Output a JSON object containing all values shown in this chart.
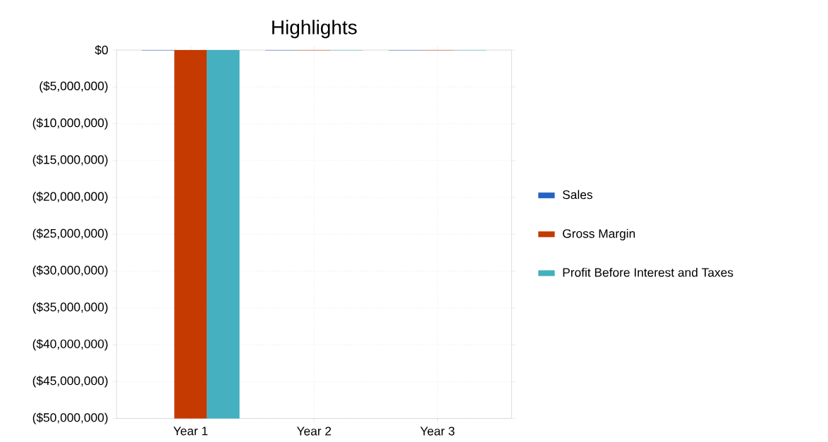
{
  "chart_data": {
    "type": "bar",
    "title": "Highlights",
    "categories": [
      "Year 1",
      "Year 2",
      "Year 3"
    ],
    "series": [
      {
        "name": "Sales",
        "color": "#2563c0",
        "values": [
          0,
          0,
          0
        ]
      },
      {
        "name": "Gross Margin",
        "color": "#c43a00",
        "values": [
          -50000000,
          0,
          0
        ]
      },
      {
        "name": "Profit Before Interest and Taxes",
        "color": "#45b0c0",
        "values": [
          -50000000,
          0,
          0
        ]
      }
    ],
    "ylim": [
      -50000000,
      0
    ],
    "yticks": [
      {
        "value": 0,
        "label": "$0"
      },
      {
        "value": -5000000,
        "label": "($5,000,000)"
      },
      {
        "value": -10000000,
        "label": "($10,000,000)"
      },
      {
        "value": -15000000,
        "label": "($15,000,000)"
      },
      {
        "value": -20000000,
        "label": "($20,000,000)"
      },
      {
        "value": -25000000,
        "label": "($25,000,000)"
      },
      {
        "value": -30000000,
        "label": "($30,000,000)"
      },
      {
        "value": -35000000,
        "label": "($35,000,000)"
      },
      {
        "value": -40000000,
        "label": "($40,000,000)"
      },
      {
        "value": -45000000,
        "label": "($45,000,000)"
      },
      {
        "value": -50000000,
        "label": "($50,000,000)"
      }
    ],
    "grid": true,
    "legend": "right"
  }
}
